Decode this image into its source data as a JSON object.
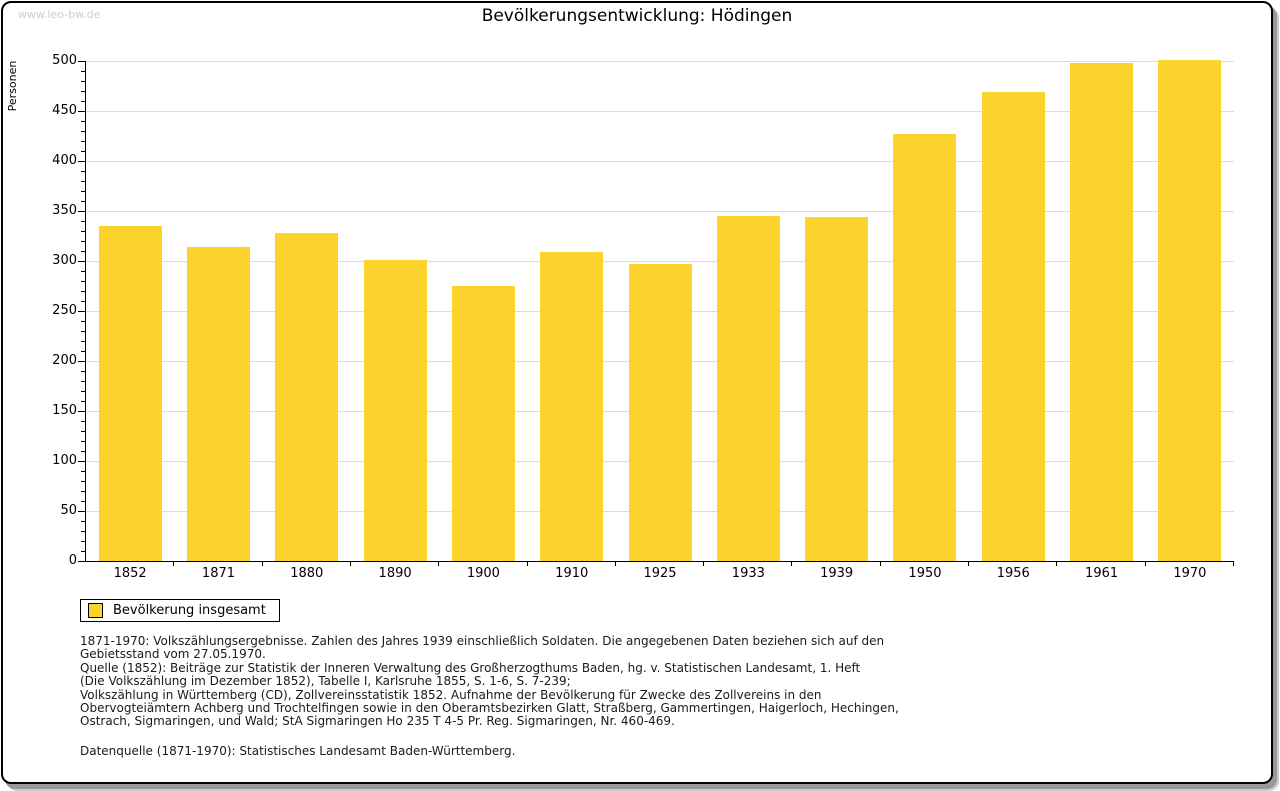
{
  "page": {
    "watermark": "www.leo-bw.de",
    "title": "Bevölkerungsentwicklung: Hödingen"
  },
  "chart_data": {
    "type": "bar",
    "title": "Bevölkerungsentwicklung: Hödingen",
    "xlabel": "",
    "ylabel": "Personen",
    "categories": [
      "1852",
      "1871",
      "1880",
      "1890",
      "1900",
      "1910",
      "1925",
      "1933",
      "1939",
      "1950",
      "1956",
      "1961",
      "1970"
    ],
    "series": [
      {
        "name": "Bevölkerung insgesamt",
        "values": [
          335,
          314,
          328,
          301,
          275,
          309,
          297,
          345,
          344,
          427,
          469,
          498,
          501
        ]
      }
    ],
    "ylim": [
      0,
      500
    ],
    "ytick_step": 50,
    "ytick_minor_step": 10,
    "grid": true,
    "legend_position": "bottom-left",
    "bar_color": "#fcd32d"
  },
  "legend": {
    "label": "Bevölkerung insgesamt",
    "swatch_color": "#fcd32d"
  },
  "footnotes": {
    "lines": [
      "1871-1970: Volkszählungsergebnisse. Zahlen des Jahres 1939 einschließlich Soldaten. Die angegebenen Daten beziehen sich auf den",
      "Gebietsstand vom 27.05.1970.",
      "Quelle (1852): Beiträge zur Statistik der Inneren Verwaltung des Großherzogthums Baden, hg. v. Statistischen Landesamt, 1. Heft",
      "(Die Volkszählung im Dezember 1852), Tabelle I, Karlsruhe 1855, S. 1-6, S. 7-239;",
      "Volkszählung in Württemberg (CD), Zollvereinsstatistik 1852. Aufnahme der Bevölkerung für Zwecke des Zollvereins in den",
      "Obervogteiämtern Achberg und Trochtelfingen sowie in den Oberamtsbezirken Glatt, Straßberg, Gammertingen, Haigerloch, Hechingen,",
      "Ostrach, Sigmaringen, und Wald; StA Sigmaringen Ho 235 T 4-5 Pr. Reg. Sigmaringen, Nr. 460-469."
    ],
    "datasource": "Datenquelle (1871-1970): Statistisches Landesamt Baden-Württemberg."
  },
  "colors": {
    "bar": "#fcd32d",
    "grid": "#dcdcdc",
    "axis": "#000000",
    "watermark_text": "#cccccc",
    "frame_border": "#000000",
    "shadow": "#999999",
    "background": "#ffffff"
  }
}
